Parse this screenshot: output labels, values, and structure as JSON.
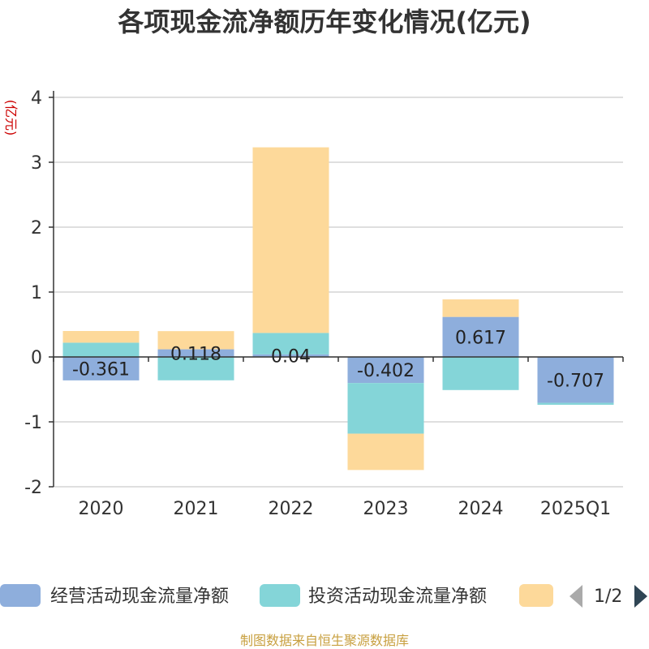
{
  "chart_data": {
    "type": "bar",
    "title": "各项现金流净额历年变化情况(亿元)",
    "ylabel": "(亿元)",
    "categories": [
      "2020",
      "2021",
      "2022",
      "2023",
      "2024",
      "2025Q1"
    ],
    "ylim": [
      -2,
      4
    ],
    "yticks": [
      4,
      3,
      2,
      1,
      0,
      -1,
      -2
    ],
    "stacked": true,
    "grid": true,
    "series": [
      {
        "name": "经营活动现金流量净额",
        "color": "#8eaedc",
        "values": [
          -0.361,
          0.118,
          0.04,
          -0.402,
          0.617,
          -0.707
        ]
      },
      {
        "name": "投资活动现金流量净额",
        "color": "#84d5d8",
        "values": [
          0.22,
          -0.36,
          0.33,
          -0.78,
          -0.51,
          -0.03
        ]
      },
      {
        "name": "",
        "color": "#fdd99a",
        "values": [
          0.18,
          0.28,
          2.86,
          -0.56,
          0.27,
          0.0
        ]
      }
    ],
    "data_labels": [
      "-0.361",
      "0.118",
      "0.04",
      "-0.402",
      "0.617",
      "-0.707"
    ],
    "legend_position": "bottom"
  },
  "legend": {
    "page": "1/2"
  },
  "source": "制图数据来自恒生聚源数据库"
}
